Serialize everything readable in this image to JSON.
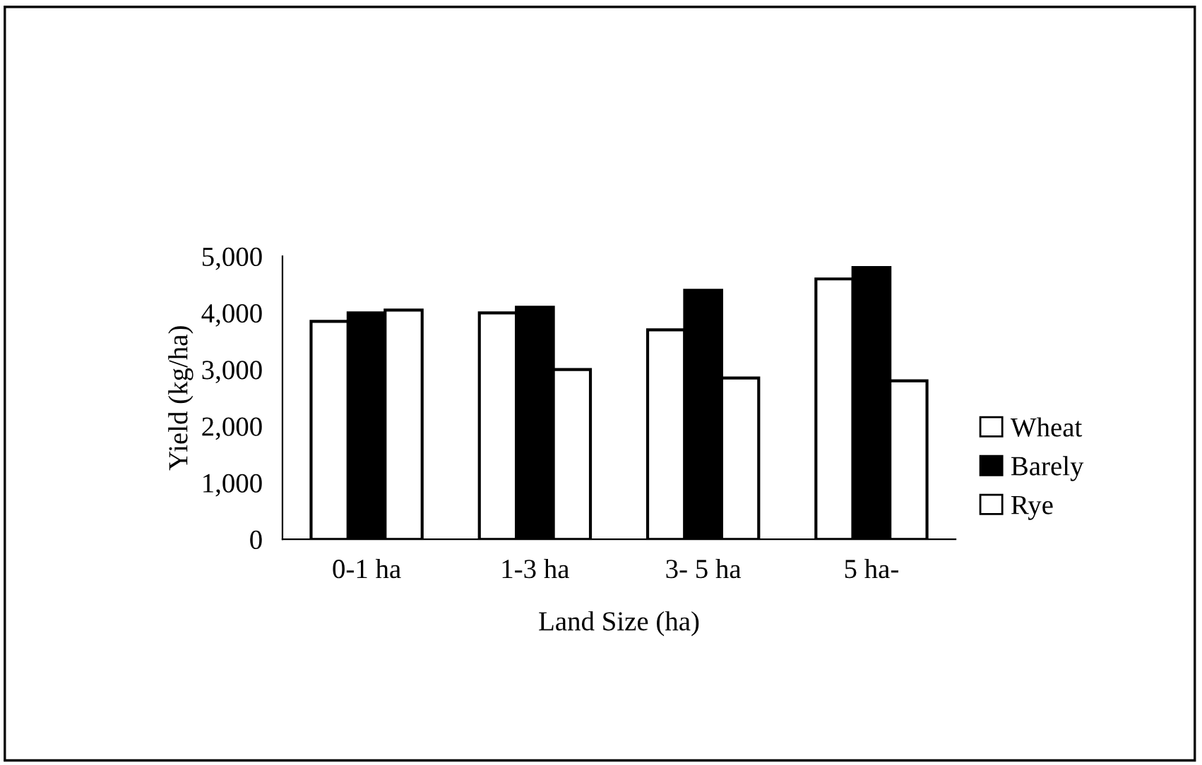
{
  "chart_data": {
    "type": "bar",
    "xlabel": "Land Size (ha)",
    "ylabel": "Yield (kg/ha)",
    "categories": [
      "0-1 ha",
      "1-3 ha",
      "3- 5 ha",
      "5 ha-"
    ],
    "series": [
      {
        "name": "Wheat",
        "color": "#ffffff",
        "values": [
          3850,
          4000,
          3700,
          4600
        ]
      },
      {
        "name": "Barely",
        "color": "#000000",
        "values": [
          4000,
          4100,
          4400,
          4800
        ]
      },
      {
        "name": "Rye",
        "color": "#ffffff",
        "values": [
          4050,
          3000,
          2850,
          2800
        ]
      }
    ],
    "ylim": [
      0,
      5000
    ],
    "yticks": [
      {
        "value": 0,
        "label": "0"
      },
      {
        "value": 1000,
        "label": "1,000"
      },
      {
        "value": 2000,
        "label": "2,000"
      },
      {
        "value": 3000,
        "label": "3,000"
      },
      {
        "value": 4000,
        "label": "4,000"
      },
      {
        "value": 5000,
        "label": "5,000"
      }
    ],
    "grid": false,
    "legend": "right"
  }
}
